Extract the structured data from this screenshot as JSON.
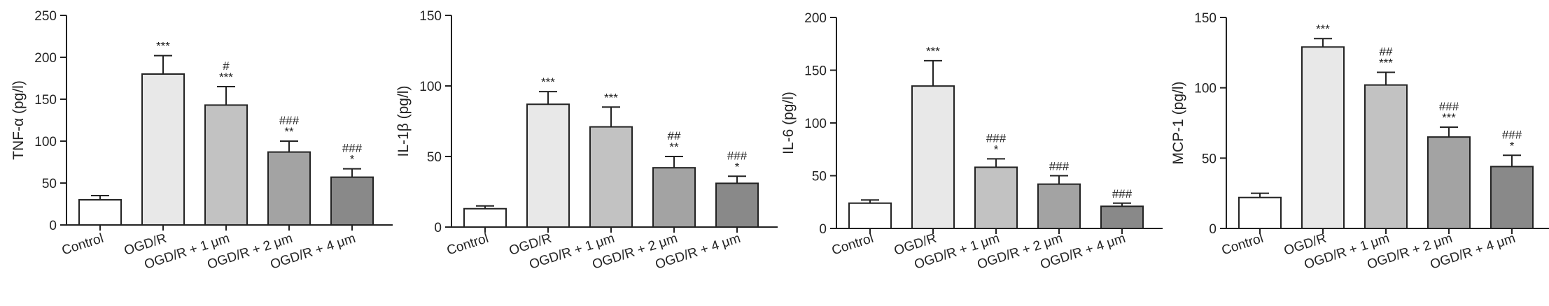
{
  "chart_data": [
    {
      "type": "bar",
      "ylabel": "TNF-α (pg/l)",
      "ylim": [
        0,
        250
      ],
      "yticks": [
        0,
        50,
        100,
        150,
        200,
        250
      ],
      "categories": [
        "Control",
        "OGD/R",
        "OGD/R + 1 μm",
        "OGD/R + 2 μm",
        "OGD/R + 4 μm"
      ],
      "values": [
        30,
        180,
        143,
        87,
        57
      ],
      "errors": [
        5,
        22,
        22,
        13,
        10
      ],
      "significance": [
        [
          "",
          ""
        ],
        [
          "***",
          ""
        ],
        [
          "***",
          "#"
        ],
        [
          "**",
          "###"
        ],
        [
          "*",
          "###"
        ]
      ],
      "colors": [
        "#ffffff",
        "#e8e8e8",
        "#c2c2c2",
        "#a3a3a3",
        "#898989"
      ]
    },
    {
      "type": "bar",
      "ylabel": "IL-1β (pg/l)",
      "ylim": [
        0,
        150
      ],
      "yticks": [
        0,
        50,
        100,
        150
      ],
      "categories": [
        "Control",
        "OGD/R",
        "OGD/R + 1 μm",
        "OGD/R + 2 μm",
        "OGD/R + 4 μm"
      ],
      "values": [
        13,
        87,
        71,
        42,
        31
      ],
      "errors": [
        2,
        9,
        14,
        8,
        5
      ],
      "significance": [
        [
          "",
          ""
        ],
        [
          "***",
          ""
        ],
        [
          "***",
          ""
        ],
        [
          "**",
          "##"
        ],
        [
          "*",
          "###"
        ]
      ],
      "colors": [
        "#ffffff",
        "#e8e8e8",
        "#c2c2c2",
        "#a3a3a3",
        "#898989"
      ]
    },
    {
      "type": "bar",
      "ylabel": "IL-6 (pg/l)",
      "ylim": [
        0,
        200
      ],
      "yticks": [
        0,
        50,
        100,
        150,
        200
      ],
      "categories": [
        "Control",
        "OGD/R",
        "OGD/R + 1 μm",
        "OGD/R + 2 μm",
        "OGD/R + 4 μm"
      ],
      "values": [
        24,
        135,
        58,
        42,
        21
      ],
      "errors": [
        3,
        24,
        8,
        8,
        3
      ],
      "significance": [
        [
          "",
          ""
        ],
        [
          "***",
          ""
        ],
        [
          "*",
          "###"
        ],
        [
          "",
          "###"
        ],
        [
          "",
          "###"
        ]
      ],
      "colors": [
        "#ffffff",
        "#e8e8e8",
        "#c2c2c2",
        "#a3a3a3",
        "#898989"
      ]
    },
    {
      "type": "bar",
      "ylabel": "MCP-1 (pg/l)",
      "ylim": [
        0,
        150
      ],
      "yticks": [
        0,
        50,
        100,
        150
      ],
      "categories": [
        "Control",
        "OGD/R",
        "OGD/R + 1 μm",
        "OGD/R + 2 μm",
        "OGD/R + 4 μm"
      ],
      "values": [
        22,
        129,
        102,
        65,
        44
      ],
      "errors": [
        3,
        6,
        9,
        7,
        8
      ],
      "significance": [
        [
          "",
          ""
        ],
        [
          "***",
          ""
        ],
        [
          "***",
          "##"
        ],
        [
          "***",
          "###"
        ],
        [
          "*",
          "###"
        ]
      ],
      "colors": [
        "#ffffff",
        "#e8e8e8",
        "#c2c2c2",
        "#a3a3a3",
        "#898989"
      ]
    }
  ]
}
